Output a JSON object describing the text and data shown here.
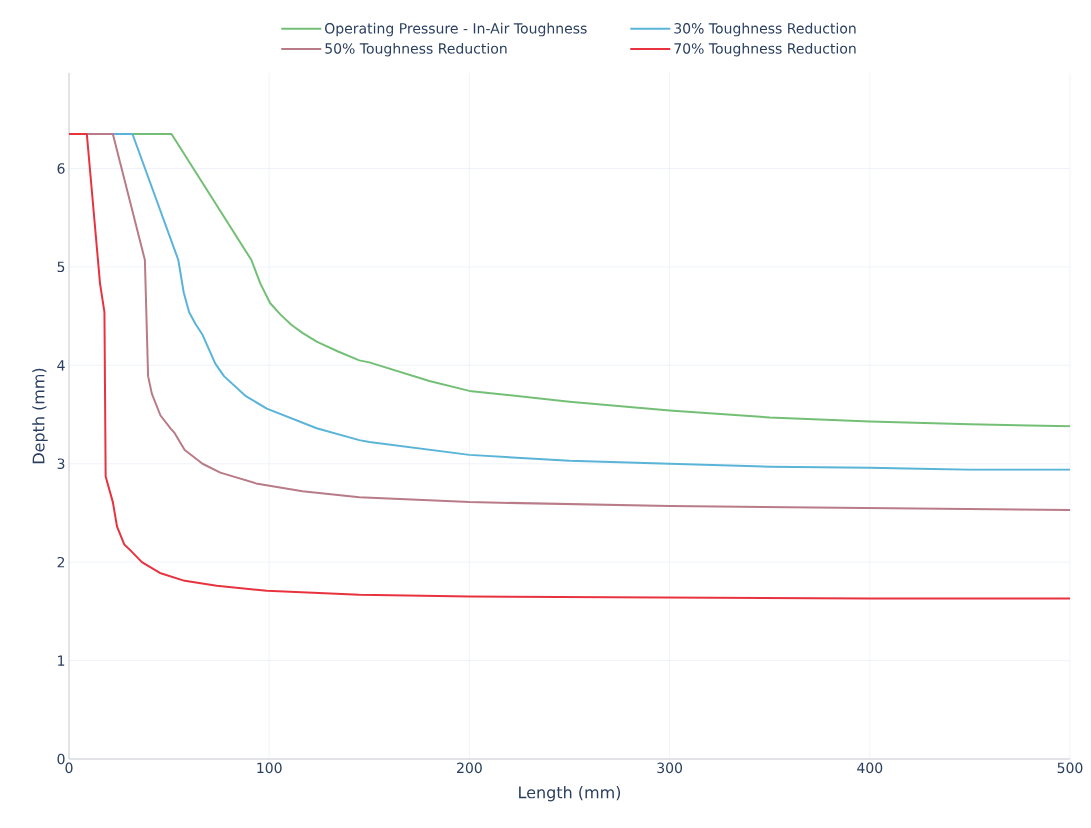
{
  "chart_data": {
    "type": "line",
    "xlabel": "Length (mm)",
    "ylabel": "Depth (mm)",
    "xlim": [
      0,
      500
    ],
    "ylim": [
      0,
      6.97
    ],
    "xticks": [
      0,
      100,
      200,
      300,
      400,
      500
    ],
    "yticks": [
      0,
      1,
      2,
      3,
      4,
      5,
      6
    ],
    "grid": true,
    "legend": "top",
    "line_style": "solid",
    "marker": "none",
    "series": [
      {
        "name": "Operating Pressure - In-Air Toughness",
        "color": "#74bf76",
        "x": [
          31.7,
          51.2,
          91.1,
          95.6,
          100.5,
          105.9,
          111.2,
          116.6,
          123.7,
          134.4,
          145,
          150,
          180,
          200,
          250,
          300,
          350,
          400,
          450,
          500
        ],
        "values": [
          6.35,
          6.35,
          5.07,
          4.83,
          4.63,
          4.51,
          4.41,
          4.33,
          4.24,
          4.14,
          4.05,
          4.03,
          3.84,
          3.74,
          3.63,
          3.54,
          3.47,
          3.43,
          3.4,
          3.38
        ]
      },
      {
        "name": "30% Toughness Reduction",
        "color": "#5ab4d8",
        "x": [
          21.9,
          31.7,
          54.6,
          57.3,
          60.0,
          63.2,
          66.7,
          73.0,
          77.4,
          88.1,
          98.8,
          123.7,
          145,
          150,
          200,
          250,
          300,
          350,
          400,
          450,
          500
        ],
        "values": [
          6.35,
          6.35,
          5.07,
          4.74,
          4.54,
          4.42,
          4.31,
          4.02,
          3.89,
          3.69,
          3.56,
          3.36,
          3.24,
          3.22,
          3.09,
          3.03,
          3.0,
          2.97,
          2.96,
          2.94,
          2.94
        ]
      },
      {
        "name": "50% Toughness Reduction",
        "color": "#b87b87",
        "x": [
          8.9,
          21.9,
          37.9,
          39.5,
          41.4,
          45.7,
          50.7,
          52.8,
          57.8,
          66.7,
          75.6,
          93.4,
          116.6,
          145,
          200,
          300,
          400,
          500
        ],
        "values": [
          6.35,
          6.35,
          5.07,
          3.89,
          3.71,
          3.49,
          3.36,
          3.31,
          3.14,
          3.0,
          2.91,
          2.8,
          2.72,
          2.66,
          2.61,
          2.57,
          2.55,
          2.53
        ]
      },
      {
        "name": "70% Toughness Reduction",
        "color": "#e8333f",
        "x": [
          0,
          8.9,
          15.5,
          17.7,
          18.3,
          21.9,
          24,
          27.6,
          30.2,
          36.4,
          45.4,
          57.8,
          73.8,
          98.8,
          145,
          200,
          300,
          400,
          500
        ],
        "values": [
          6.35,
          6.35,
          4.83,
          4.54,
          2.87,
          2.61,
          2.36,
          2.18,
          2.13,
          2.0,
          1.89,
          1.81,
          1.76,
          1.71,
          1.67,
          1.65,
          1.64,
          1.63,
          1.63
        ]
      }
    ]
  }
}
